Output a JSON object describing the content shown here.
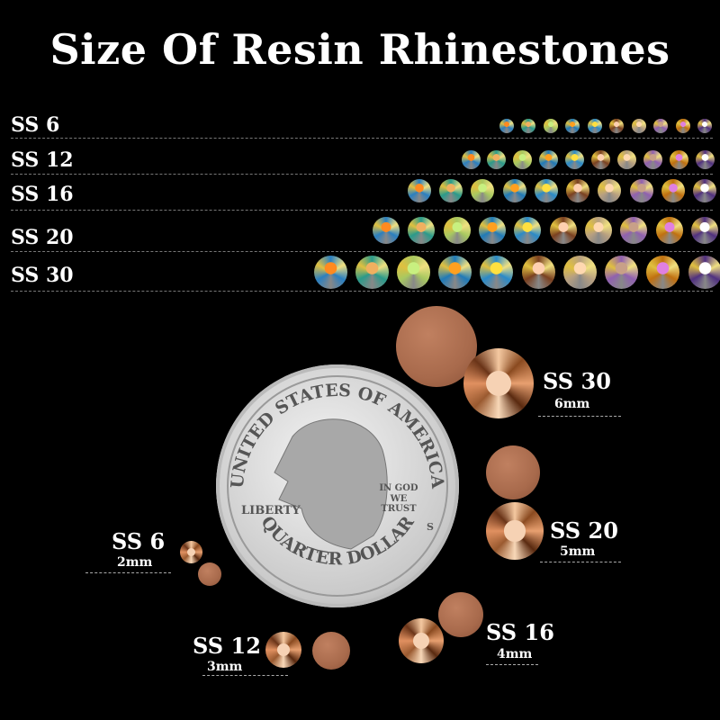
{
  "title": "Size Of Resin Rhinestones",
  "rows": [
    {
      "label": "SS 6"
    },
    {
      "label": "SS 12"
    },
    {
      "label": "SS 16"
    },
    {
      "label": "SS 20"
    },
    {
      "label": "SS 30"
    }
  ],
  "stone_colors": [
    [
      "#2a7fc0",
      "#ff8a20"
    ],
    [
      "#2a9a8a",
      "#f0b060"
    ],
    [
      "#a8c860",
      "#c8f080"
    ],
    [
      "#1f7ab8",
      "#ffa020"
    ],
    [
      "#2a8ac8",
      "#ffe040"
    ],
    [
      "#7a4020",
      "#ffd0b0"
    ],
    [
      "#b8a080",
      "#ffd8b0"
    ],
    [
      "#9060b0",
      "#c8a088"
    ],
    [
      "#c07010",
      "#e080e0"
    ],
    [
      "#503080",
      "#ffffff"
    ]
  ],
  "comparison": [
    {
      "label": "SS 30",
      "size": "6mm"
    },
    {
      "label": "SS 20",
      "size": "5mm"
    },
    {
      "label": "SS 16",
      "size": "4mm"
    },
    {
      "label": "SS 12",
      "size": "3mm"
    },
    {
      "label": "SS 6",
      "size": "2mm"
    }
  ],
  "coin": {
    "top": "UNITED STATES OF AMERICA",
    "left": "LIBERTY",
    "motto": "IN GOD WE TRUST",
    "bottom": "QUARTER DOLLAR",
    "mint": "S"
  }
}
